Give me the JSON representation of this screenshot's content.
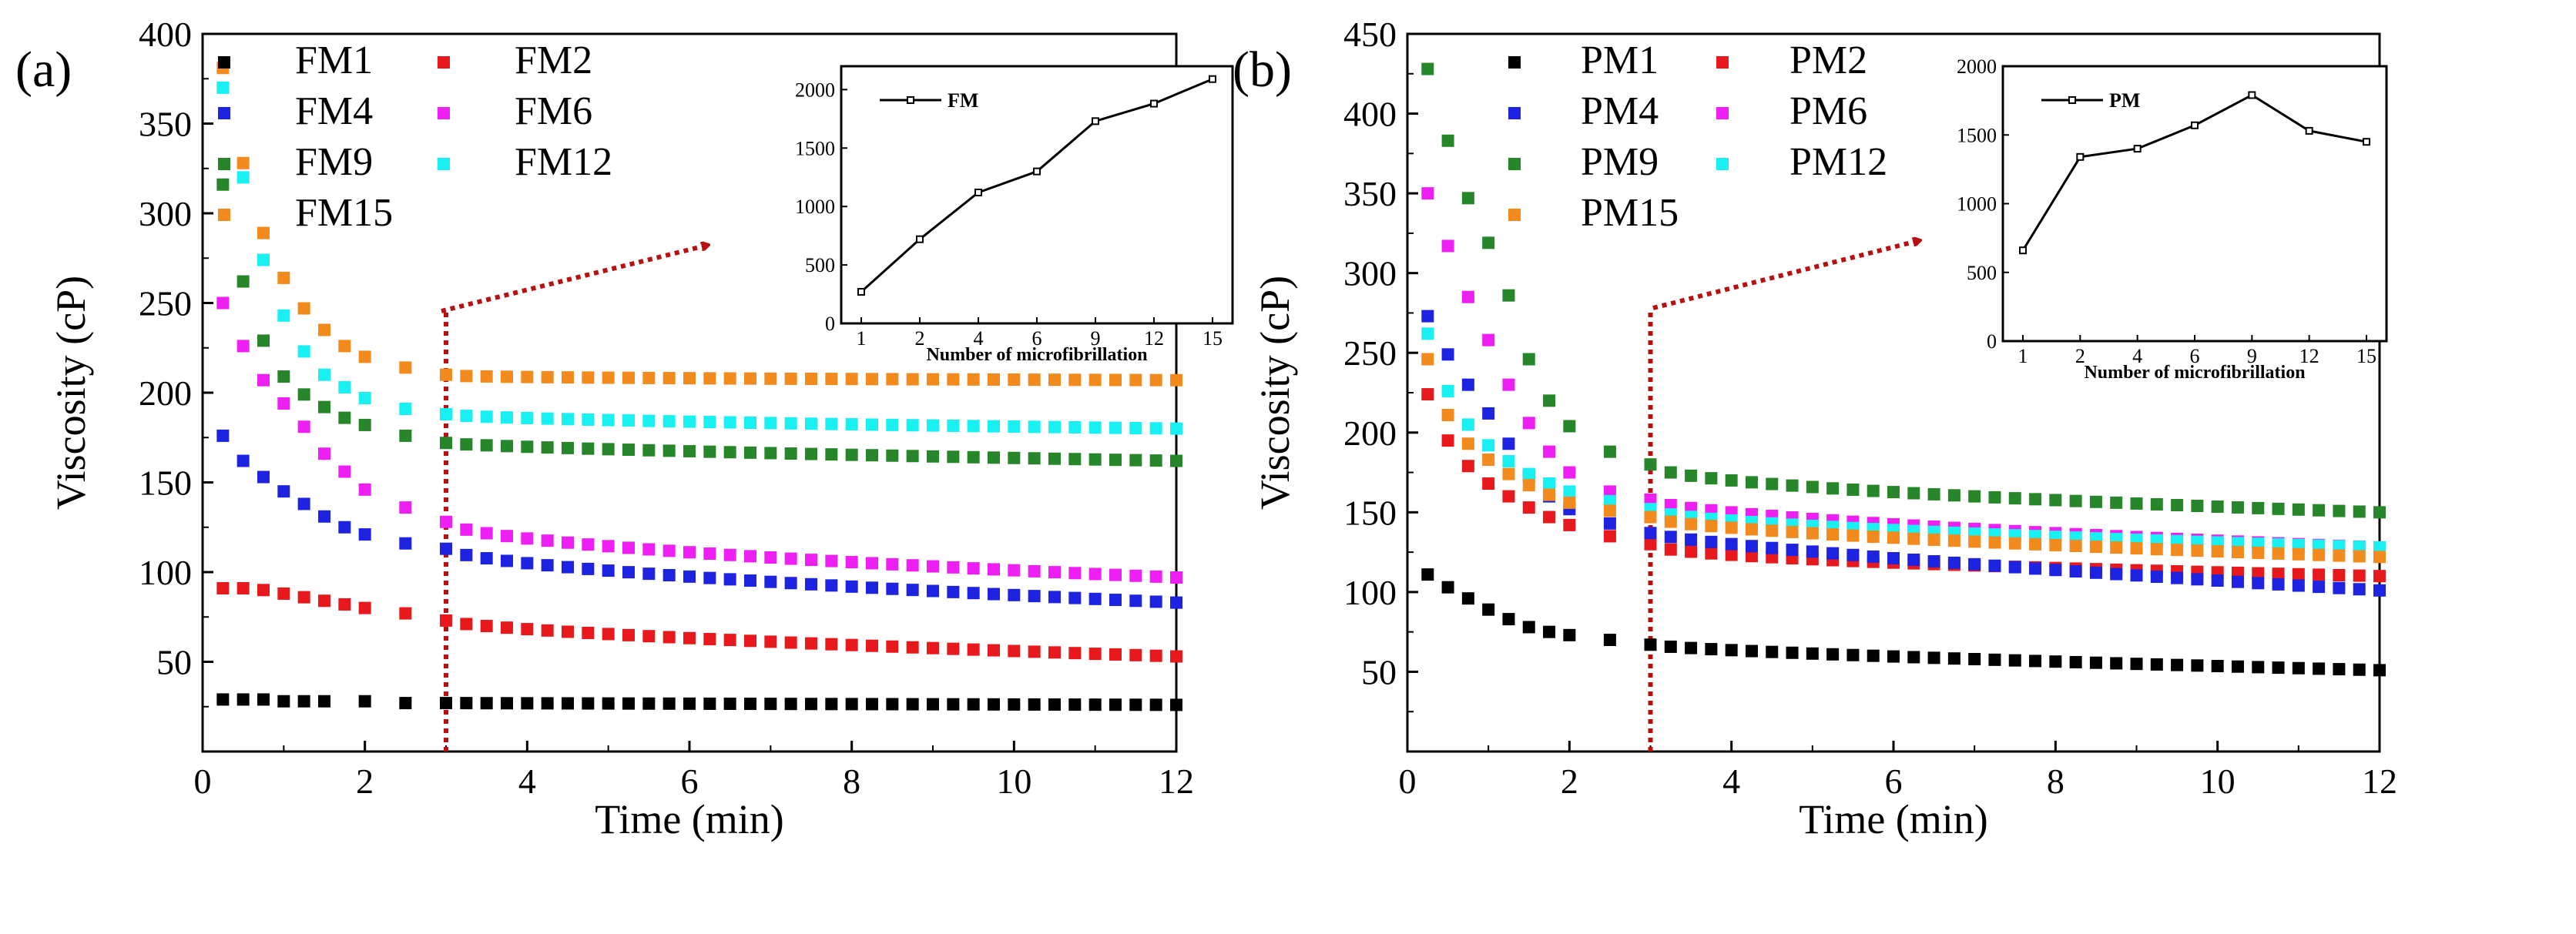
{
  "colors": {
    "FM1": "#000000",
    "FM2": "#e8191c",
    "FM4": "#1d23e0",
    "FM6": "#ee1ff2",
    "FM9": "#27852a",
    "FM12": "#19f0f2",
    "FM15": "#f28a1d",
    "arrow": "#b81010"
  },
  "chart_data": [
    {
      "type": "scatter",
      "panel_label": "(a)",
      "xlabel": "Time (min)",
      "ylabel": "Viscosity (cP)",
      "xlim": [
        0,
        12
      ],
      "ylim": [
        0,
        400
      ],
      "xticks": [
        0,
        2,
        4,
        6,
        8,
        10,
        12
      ],
      "yticks": [
        50,
        100,
        150,
        200,
        250,
        300,
        350,
        400
      ],
      "marker_line_x": 3,
      "legend_position": "top-left",
      "series": [
        {
          "name": "FM1",
          "color": "#000000",
          "early": [
            [
              0.25,
              29
            ],
            [
              0.5,
              29
            ],
            [
              0.75,
              29
            ],
            [
              1.0,
              28
            ],
            [
              1.25,
              28
            ],
            [
              1.5,
              28
            ],
            [
              2.0,
              28
            ],
            [
              2.5,
              27
            ]
          ],
          "anchors": [
            [
              3,
              27
            ],
            [
              12,
              26
            ]
          ],
          "shape": 1.0
        },
        {
          "name": "FM2",
          "color": "#e8191c",
          "early": [
            [
              0.25,
              91
            ],
            [
              0.5,
              91
            ],
            [
              0.75,
              90
            ],
            [
              1.0,
              88
            ],
            [
              1.25,
              86
            ],
            [
              1.5,
              84
            ],
            [
              1.75,
              82
            ],
            [
              2.0,
              80
            ],
            [
              2.5,
              77
            ]
          ],
          "anchors": [
            [
              3,
              73
            ],
            [
              12,
              53
            ]
          ],
          "shape": 0.65
        },
        {
          "name": "FM4",
          "color": "#1d23e0",
          "early": [
            [
              0.25,
              176
            ],
            [
              0.5,
              162
            ],
            [
              0.75,
              153
            ],
            [
              1.0,
              145
            ],
            [
              1.25,
              138
            ],
            [
              1.5,
              131
            ],
            [
              1.75,
              125
            ],
            [
              2.0,
              121
            ],
            [
              2.5,
              116
            ]
          ],
          "anchors": [
            [
              3,
              113
            ],
            [
              12,
              83
            ]
          ],
          "shape": 0.6
        },
        {
          "name": "FM6",
          "color": "#ee1ff2",
          "early": [
            [
              0.25,
              250
            ],
            [
              0.5,
              226
            ],
            [
              0.75,
              207
            ],
            [
              1.0,
              194
            ],
            [
              1.25,
              181
            ],
            [
              1.5,
              166
            ],
            [
              1.75,
              156
            ],
            [
              2.0,
              146
            ],
            [
              2.5,
              136
            ]
          ],
          "anchors": [
            [
              3,
              128
            ],
            [
              12,
              97
            ]
          ],
          "shape": 0.55
        },
        {
          "name": "FM9",
          "color": "#27852a",
          "early": [
            [
              0.25,
              316
            ],
            [
              0.5,
              262
            ],
            [
              0.75,
              229
            ],
            [
              1.0,
              209
            ],
            [
              1.25,
              199
            ],
            [
              1.5,
              192
            ],
            [
              1.75,
              186
            ],
            [
              2.0,
              182
            ],
            [
              2.5,
              176
            ]
          ],
          "anchors": [
            [
              3,
              172
            ],
            [
              12,
              162
            ]
          ],
          "shape": 0.7
        },
        {
          "name": "FM12",
          "color": "#19f0f2",
          "early": [
            [
              0.25,
              370
            ],
            [
              0.5,
              320
            ],
            [
              0.75,
              274
            ],
            [
              1.0,
              243
            ],
            [
              1.25,
              223
            ],
            [
              1.5,
              210
            ],
            [
              1.75,
              203
            ],
            [
              2.0,
              197
            ],
            [
              2.5,
              191
            ]
          ],
          "anchors": [
            [
              3,
              188
            ],
            [
              12,
              180
            ]
          ],
          "shape": 0.6
        },
        {
          "name": "FM15",
          "color": "#f28a1d",
          "early": [
            [
              0.25,
              381
            ],
            [
              0.5,
              328
            ],
            [
              0.75,
              289
            ],
            [
              1.0,
              264
            ],
            [
              1.25,
              247
            ],
            [
              1.5,
              235
            ],
            [
              1.75,
              226
            ],
            [
              2.0,
              220
            ],
            [
              2.5,
              214
            ]
          ],
          "anchors": [
            [
              3,
              210
            ],
            [
              12,
              207
            ]
          ],
          "shape": 0.4
        }
      ],
      "inset": {
        "legend": "FM",
        "xlabel": "Number of microfibrillation",
        "categories": [
          "1",
          "2",
          "4",
          "6",
          "9",
          "12",
          "15"
        ],
        "values": [
          270,
          720,
          1120,
          1300,
          1730,
          1880,
          2090
        ],
        "ylim": [
          0,
          2200
        ],
        "yticks": [
          0,
          500,
          1000,
          1500,
          2000
        ]
      }
    },
    {
      "type": "scatter",
      "panel_label": "(b)",
      "xlabel": "Time (min)",
      "ylabel": "Viscosity (cP)",
      "xlim": [
        0,
        12
      ],
      "ylim": [
        0,
        450
      ],
      "xticks": [
        0,
        2,
        4,
        6,
        8,
        10,
        12
      ],
      "yticks": [
        50,
        100,
        150,
        200,
        250,
        300,
        350,
        400,
        450
      ],
      "marker_line_x": 3,
      "legend_position": "top-left",
      "series": [
        {
          "name": "PM1",
          "color": "#000000",
          "early": [
            [
              0.25,
              111
            ],
            [
              0.5,
              103
            ],
            [
              0.75,
              96
            ],
            [
              1.0,
              89
            ],
            [
              1.25,
              83
            ],
            [
              1.5,
              78
            ],
            [
              1.75,
              75
            ],
            [
              2.0,
              73
            ],
            [
              2.5,
              70
            ]
          ],
          "anchors": [
            [
              3,
              67
            ],
            [
              12,
              51
            ]
          ],
          "shape": 0.7
        },
        {
          "name": "PM2",
          "color": "#e8191c",
          "early": [
            [
              0.25,
              224
            ],
            [
              0.5,
              195
            ],
            [
              0.75,
              179
            ],
            [
              1.0,
              168
            ],
            [
              1.25,
              160
            ],
            [
              1.5,
              153
            ],
            [
              1.75,
              147
            ],
            [
              2.0,
              142
            ],
            [
              2.5,
              135
            ]
          ],
          "anchors": [
            [
              3,
              130
            ],
            [
              12,
              110
            ]
          ],
          "shape": 0.5
        },
        {
          "name": "PM4",
          "color": "#1d23e0",
          "early": [
            [
              0.25,
              273
            ],
            [
              0.5,
              249
            ],
            [
              0.75,
              230
            ],
            [
              1.0,
              212
            ],
            [
              1.25,
              193
            ],
            [
              1.5,
              173
            ],
            [
              1.75,
              160
            ],
            [
              2.0,
              152
            ],
            [
              2.5,
              143
            ]
          ],
          "anchors": [
            [
              3,
              137
            ],
            [
              12,
              101
            ]
          ],
          "shape": 0.75
        },
        {
          "name": "PM6",
          "color": "#ee1ff2",
          "early": [
            [
              0.25,
              350
            ],
            [
              0.5,
              317
            ],
            [
              0.75,
              285
            ],
            [
              1.0,
              258
            ],
            [
              1.25,
              230
            ],
            [
              1.5,
              206
            ],
            [
              1.75,
              188
            ],
            [
              2.0,
              175
            ],
            [
              2.5,
              163
            ]
          ],
          "anchors": [
            [
              3,
              158
            ],
            [
              12,
              128
            ]
          ],
          "shape": 0.6
        },
        {
          "name": "PM9",
          "color": "#27852a",
          "early": [
            [
              0.25,
              428
            ],
            [
              0.5,
              383
            ],
            [
              0.75,
              347
            ],
            [
              1.0,
              319
            ],
            [
              1.25,
              286
            ],
            [
              1.5,
              246
            ],
            [
              1.75,
              220
            ],
            [
              2.0,
              204
            ],
            [
              2.5,
              188
            ]
          ],
          "anchors": [
            [
              3,
              180
            ],
            [
              12,
              150
            ]
          ],
          "shape": 0.5
        },
        {
          "name": "PM12",
          "color": "#19f0f2",
          "early": [
            [
              0.25,
              262
            ],
            [
              0.5,
              226
            ],
            [
              0.75,
              205
            ],
            [
              1.0,
              192
            ],
            [
              1.25,
              182
            ],
            [
              1.5,
              174
            ],
            [
              1.75,
              168
            ],
            [
              2.0,
              163
            ],
            [
              2.5,
              157
            ]
          ],
          "anchors": [
            [
              3,
              152
            ],
            [
              12,
              128
            ]
          ],
          "shape": 0.55
        },
        {
          "name": "PM15",
          "color": "#f28a1d",
          "early": [
            [
              0.25,
              246
            ],
            [
              0.5,
              211
            ],
            [
              0.75,
              193
            ],
            [
              1.0,
              183
            ],
            [
              1.25,
              174
            ],
            [
              1.5,
              167
            ],
            [
              1.75,
              161
            ],
            [
              2.0,
              156
            ],
            [
              2.5,
              151
            ]
          ],
          "anchors": [
            [
              3,
              147
            ],
            [
              12,
              122
            ]
          ],
          "shape": 0.6
        }
      ],
      "inset": {
        "legend": "PM",
        "xlabel": "Number of microfibrillation",
        "categories": [
          "1",
          "2",
          "4",
          "6",
          "9",
          "12",
          "15"
        ],
        "values": [
          660,
          1340,
          1400,
          1570,
          1790,
          1530,
          1450
        ],
        "ylim": [
          0,
          2000
        ],
        "yticks": [
          0,
          500,
          1000,
          1500,
          2000
        ]
      }
    }
  ]
}
